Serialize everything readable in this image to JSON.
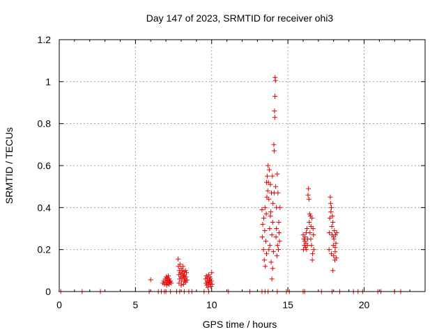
{
  "chart_data": {
    "type": "scatter",
    "title": "Day 147 of 2023, SRMTID for receiver ohi3",
    "xlabel": "GPS time / hours",
    "ylabel": "SRMTID / TECUs",
    "xlim": [
      0,
      24
    ],
    "ylim": [
      0,
      1.2
    ],
    "xticks": [
      0,
      5,
      10,
      15,
      20
    ],
    "yticks": [
      0,
      0.2,
      0.4,
      0.6,
      0.8,
      1,
      1.2
    ],
    "xtick_labels": [
      "0",
      "5",
      "10",
      "15",
      "20"
    ],
    "ytick_labels": [
      "0",
      "0.2",
      "0.4",
      "0.6",
      "0.8",
      "1",
      "1.2"
    ],
    "grid": true,
    "marker": "+",
    "series": [
      {
        "name": "SRMTID",
        "color": "#e00000",
        "points": [
          [
            0.1,
            0
          ],
          [
            1.5,
            0
          ],
          [
            2.7,
            0
          ],
          [
            5.9,
            0
          ],
          [
            6.5,
            0
          ],
          [
            6.7,
            0
          ],
          [
            6.9,
            0
          ],
          [
            7.0,
            0
          ],
          [
            7.3,
            0
          ],
          [
            7.7,
            0
          ],
          [
            7.9,
            0
          ],
          [
            8.2,
            0
          ],
          [
            8.5,
            0
          ],
          [
            8.7,
            0
          ],
          [
            9.5,
            0
          ],
          [
            9.8,
            0
          ],
          [
            11.1,
            0
          ],
          [
            12.5,
            0
          ],
          [
            13.3,
            0
          ],
          [
            13.5,
            0
          ],
          [
            13.7,
            0
          ],
          [
            14.3,
            0
          ],
          [
            14.9,
            0
          ],
          [
            15.1,
            0
          ],
          [
            16.0,
            0
          ],
          [
            16.1,
            0
          ],
          [
            17.2,
            0
          ],
          [
            17.9,
            0
          ],
          [
            18.4,
            0
          ],
          [
            19.3,
            0
          ],
          [
            19.6,
            0
          ],
          [
            19.9,
            0
          ],
          [
            20.9,
            0
          ],
          [
            21.1,
            0
          ],
          [
            22.0,
            0
          ],
          [
            22.4,
            0
          ],
          [
            6.0,
            0.056
          ],
          [
            6.8,
            0.04
          ],
          [
            6.85,
            0.05
          ],
          [
            6.9,
            0.035
          ],
          [
            6.95,
            0.06
          ],
          [
            7.0,
            0.045
          ],
          [
            7.02,
            0.07
          ],
          [
            7.05,
            0.03
          ],
          [
            7.08,
            0.055
          ],
          [
            7.1,
            0.065
          ],
          [
            7.12,
            0.04
          ],
          [
            7.15,
            0.075
          ],
          [
            7.18,
            0.05
          ],
          [
            7.2,
            0.035
          ],
          [
            7.22,
            0.06
          ],
          [
            7.25,
            0.045
          ],
          [
            7.3,
            0.05
          ],
          [
            7.35,
            0.04
          ],
          [
            7.8,
            0.155
          ],
          [
            7.82,
            0.12
          ],
          [
            7.85,
            0.08
          ],
          [
            7.88,
            0.1
          ],
          [
            7.9,
            0.06
          ],
          [
            7.92,
            0.13
          ],
          [
            7.95,
            0.09
          ],
          [
            7.97,
            0.07
          ],
          [
            8.0,
            0.11
          ],
          [
            8.02,
            0.05
          ],
          [
            8.05,
            0.085
          ],
          [
            8.08,
            0.1
          ],
          [
            8.1,
            0.065
          ],
          [
            8.12,
            0.12
          ],
          [
            8.15,
            0.075
          ],
          [
            8.18,
            0.095
          ],
          [
            8.2,
            0.05
          ],
          [
            8.22,
            0.08
          ],
          [
            8.25,
            0.06
          ],
          [
            8.28,
            0.1
          ],
          [
            8.3,
            0.045
          ],
          [
            8.32,
            0.07
          ],
          [
            8.35,
            0.09
          ],
          [
            8.38,
            0.055
          ],
          [
            7.86,
            0.04
          ],
          [
            8.0,
            0.03
          ],
          [
            8.15,
            0.035
          ],
          [
            9.6,
            0.06
          ],
          [
            9.62,
            0.04
          ],
          [
            9.65,
            0.075
          ],
          [
            9.68,
            0.03
          ],
          [
            9.7,
            0.05
          ],
          [
            9.72,
            0.065
          ],
          [
            9.75,
            0.02
          ],
          [
            9.78,
            0.045
          ],
          [
            9.8,
            0.08
          ],
          [
            9.82,
            0.035
          ],
          [
            9.85,
            0.055
          ],
          [
            9.88,
            0.07
          ],
          [
            9.9,
            0.04
          ],
          [
            9.93,
            0.06
          ],
          [
            9.95,
            0.025
          ],
          [
            9.98,
            0.05
          ],
          [
            10.0,
            0.09
          ],
          [
            10.02,
            0.035
          ],
          [
            13.3,
            0.39
          ],
          [
            13.32,
            0.26
          ],
          [
            13.35,
            0.32
          ],
          [
            13.4,
            0.2
          ],
          [
            13.42,
            0.35
          ],
          [
            13.45,
            0.15
          ],
          [
            13.48,
            0.29
          ],
          [
            13.5,
            0.4
          ],
          [
            13.52,
            0.12
          ],
          [
            13.55,
            0.24
          ],
          [
            13.58,
            0.37
          ],
          [
            13.6,
            0.18
          ],
          [
            13.62,
            0.45
          ],
          [
            13.65,
            0.55
          ],
          [
            13.68,
            0.48
          ],
          [
            13.7,
            0.6
          ],
          [
            13.72,
            0.52
          ],
          [
            13.75,
            0.44
          ],
          [
            13.78,
            0.58
          ],
          [
            13.8,
            0.3
          ],
          [
            13.82,
            0.22
          ],
          [
            13.85,
            0.51
          ],
          [
            13.88,
            0.38
          ],
          [
            13.9,
            0.14
          ],
          [
            13.92,
            0.47
          ],
          [
            13.95,
            0.27
          ],
          [
            13.98,
            0.55
          ],
          [
            14.0,
            0.33
          ],
          [
            14.02,
            0.42
          ],
          [
            14.05,
            0.19
          ],
          [
            14.08,
            0.7
          ],
          [
            14.1,
            0.67
          ],
          [
            14.12,
            0.86
          ],
          [
            14.14,
            0.83
          ],
          [
            14.15,
            0.93
          ],
          [
            14.16,
            1.02
          ],
          [
            14.18,
            1.005
          ],
          [
            14.2,
            0.5
          ],
          [
            14.22,
            0.26
          ],
          [
            14.25,
            0.4
          ],
          [
            14.28,
            0.17
          ],
          [
            14.3,
            0.56
          ],
          [
            14.32,
            0.22
          ],
          [
            14.35,
            0.47
          ],
          [
            14.38,
            0.2
          ],
          [
            14.4,
            0.33
          ],
          [
            14.42,
            0.28
          ],
          [
            14.45,
            0.24
          ],
          [
            14.48,
            0.4
          ],
          [
            13.6,
            0.52
          ],
          [
            13.75,
            0.2
          ],
          [
            13.85,
            0.36
          ],
          [
            14.0,
            0.11
          ],
          [
            14.1,
            0.47
          ],
          [
            14.25,
            0.3
          ],
          [
            13.95,
            0.06
          ],
          [
            16.0,
            0.27
          ],
          [
            16.02,
            0.2
          ],
          [
            16.05,
            0.25
          ],
          [
            16.08,
            0.22
          ],
          [
            16.1,
            0.24
          ],
          [
            16.12,
            0.26
          ],
          [
            16.15,
            0.21
          ],
          [
            16.18,
            0.23
          ],
          [
            16.2,
            0.28
          ],
          [
            16.22,
            0.2
          ],
          [
            16.25,
            0.3
          ],
          [
            16.28,
            0.22
          ],
          [
            16.3,
            0.25
          ],
          [
            16.32,
            0.46
          ],
          [
            16.35,
            0.49
          ],
          [
            16.38,
            0.44
          ],
          [
            16.4,
            0.33
          ],
          [
            16.42,
            0.37
          ],
          [
            16.45,
            0.28
          ],
          [
            16.48,
            0.36
          ],
          [
            16.5,
            0.25
          ],
          [
            16.52,
            0.31
          ],
          [
            16.55,
            0.22
          ],
          [
            16.58,
            0.35
          ],
          [
            16.6,
            0.15
          ],
          [
            16.62,
            0.18
          ],
          [
            16.65,
            0.3
          ],
          [
            16.68,
            0.27
          ],
          [
            16.7,
            0.2
          ],
          [
            17.7,
            0.2
          ],
          [
            17.72,
            0.28
          ],
          [
            17.75,
            0.35
          ],
          [
            17.78,
            0.45
          ],
          [
            17.8,
            0.42
          ],
          [
            17.82,
            0.38
          ],
          [
            17.85,
            0.4
          ],
          [
            17.88,
            0.31
          ],
          [
            17.9,
            0.27
          ],
          [
            17.92,
            0.36
          ],
          [
            17.95,
            0.1
          ],
          [
            17.98,
            0.22
          ],
          [
            18.0,
            0.17
          ],
          [
            18.02,
            0.25
          ],
          [
            18.05,
            0.29
          ],
          [
            18.08,
            0.15
          ],
          [
            18.1,
            0.19
          ],
          [
            18.12,
            0.27
          ],
          [
            18.15,
            0.23
          ],
          [
            18.18,
            0.16
          ],
          [
            18.2,
            0.28
          ],
          [
            17.85,
            0.18
          ],
          [
            18.0,
            0.26
          ],
          [
            18.1,
            0.21
          ],
          [
            17.95,
            0.33
          ]
        ]
      }
    ]
  }
}
